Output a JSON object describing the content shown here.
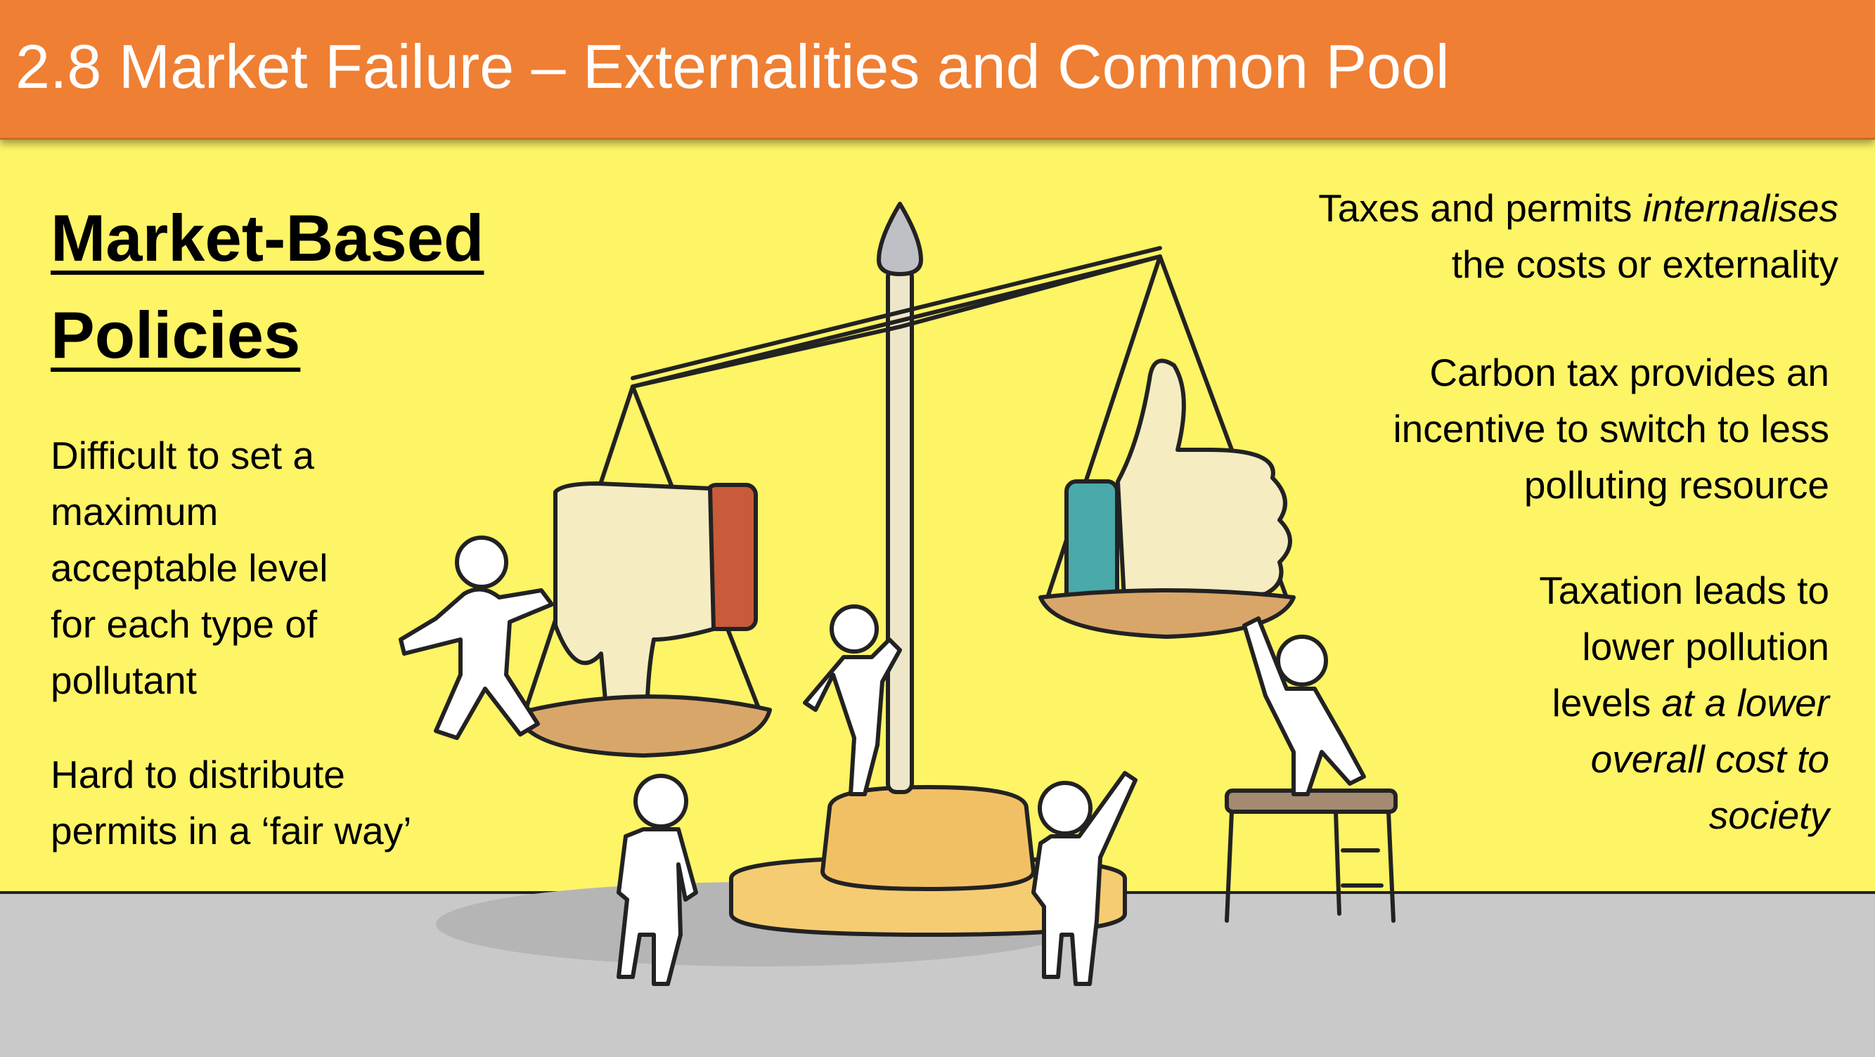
{
  "header": {
    "title": "2.8 Market Failure – Externalities and Common Pool"
  },
  "section": {
    "title_line1": "Market-Based",
    "title_line2": "Policies"
  },
  "left_points": [
    {
      "line1": "Difficult to set a",
      "line2": "maximum",
      "line3": "acceptable level",
      "line4": "for each type of",
      "line5": "pollutant"
    },
    {
      "line1": "Hard to distribute",
      "line2": "permits in a ‘fair way’"
    }
  ],
  "right_points": [
    {
      "pre": "Taxes and permits ",
      "em": "internalises",
      "line2": "the costs or externality"
    },
    {
      "line1": "Carbon tax provides an",
      "line2": "incentive to switch to less",
      "line3": "polluting resource"
    },
    {
      "line1": "Taxation leads to",
      "line2": "lower pollution",
      "line3_pre": "levels ",
      "line3_em": "at a lower",
      "line4_em": "overall cost to",
      "line5_em": "society"
    }
  ],
  "colors": {
    "header_bg": "#ef7f33",
    "slide_bg": "#fdf466",
    "floor": "#c9c9c9",
    "thumb_down_cuff": "#c95a3a",
    "thumb_up_cuff": "#4aa9a9"
  },
  "icons": [
    "balance-scale-icon",
    "thumbs-down-icon",
    "thumbs-up-icon",
    "stick-figure-icon"
  ]
}
